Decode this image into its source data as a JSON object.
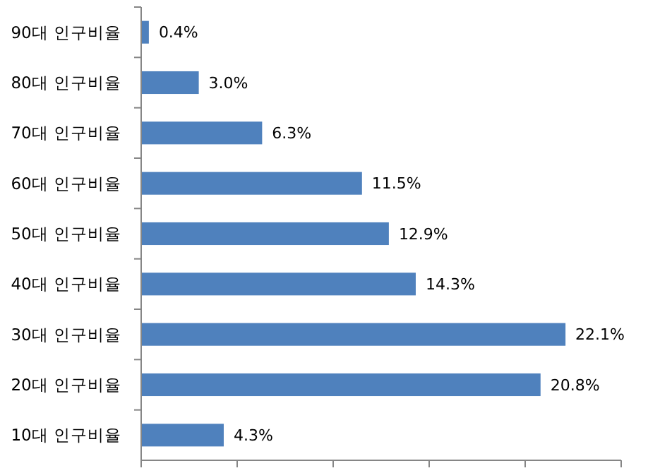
{
  "chart_data": {
    "type": "bar",
    "orientation": "horizontal",
    "categories": [
      "90대 인구비율",
      "80대 인구비율",
      "70대 인구비율",
      "60대 인구비율",
      "50대 인구비율",
      "40대 인구비율",
      "30대 인구비율",
      "20대 인구비율",
      "10대 인구비율"
    ],
    "values": [
      0.4,
      3.0,
      6.3,
      11.5,
      12.9,
      14.3,
      22.1,
      20.8,
      4.3
    ],
    "value_labels": [
      "0.4%",
      "3.0%",
      "6.3%",
      "11.5%",
      "12.9%",
      "14.3%",
      "22.1%",
      "20.8%",
      "4.3%"
    ],
    "color": "#4f81bd",
    "xlim": [
      0,
      25
    ],
    "xticks": [
      {
        "value": 0,
        "label": null
      },
      {
        "value": 5,
        "label": null
      },
      {
        "value": 10,
        "label": null
      },
      {
        "value": 15,
        "label": null
      },
      {
        "value": 20,
        "label": null
      },
      {
        "value": 25,
        "label": null
      }
    ],
    "tick_labels": "y",
    "grid": false
  }
}
